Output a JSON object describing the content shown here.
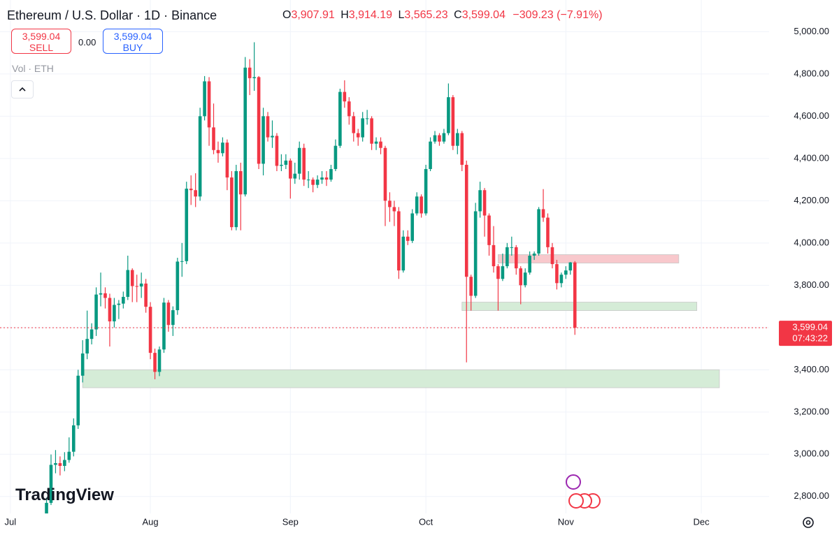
{
  "header": {
    "title": "Ethereum / U.S. Dollar · 1D · Binance",
    "ohlc": [
      {
        "key": "O",
        "value": "3,907.91"
      },
      {
        "key": "H",
        "value": "3,914.19"
      },
      {
        "key": "L",
        "value": "3,565.23"
      },
      {
        "key": "C",
        "value": "3,599.04"
      }
    ],
    "change": "−309.23 (−7.91%)",
    "sell": {
      "price": "3,599.04",
      "label": "SELL"
    },
    "spread": "0.00",
    "buy": {
      "price": "3,599.04",
      "label": "BUY"
    },
    "volume": "Vol · ETH",
    "brand": "TradingView"
  },
  "chart_data": {
    "type": "candlestick",
    "up_color": "#089981",
    "down_color": "#f23645",
    "open": [
      2615,
      2770,
      2950,
      2958,
      2945,
      2973,
      3012,
      3137,
      3372,
      3477,
      3546,
      3591,
      3756,
      3762,
      3740,
      3629,
      3707,
      3713,
      3745,
      3872,
      3796,
      3794,
      3808,
      3698,
      3480,
      3390,
      3496,
      3718,
      3612,
      3682,
      3912,
      3914,
      4257,
      4250,
      4220,
      4600,
      4765,
      4547,
      4440,
      4425,
      4475,
      4310,
      4075,
      4340,
      4230,
      4830,
      4780,
      4785,
      4375,
      4600,
      4500,
      4507,
      4365,
      4370,
      4390,
      4305,
      4328,
      4450,
      4300,
      4300,
      4275,
      4300,
      4310,
      4300,
      4350,
      4460,
      4715,
      4670,
      4600,
      4520,
      4500,
      4590,
      4590,
      4470,
      4480,
      4450,
      4200,
      4170,
      4150,
      3870,
      4030,
      4010,
      4140,
      4220,
      4140,
      4350,
      4480,
      4510,
      4480,
      4520,
      4690,
      4460,
      4520,
      4370,
      3840,
      3750,
      4150,
      4250,
      4130,
      3990,
      3890,
      3830,
      3890,
      3980,
      3980,
      3880,
      3800,
      3860,
      3940,
      3950,
      4160,
      4120,
      3980,
      3900,
      3810,
      3850,
      3870,
      3907.91
    ],
    "high": [
      2795,
      2999,
      3020,
      2990,
      3010,
      3080,
      3170,
      3400,
      3540,
      3680,
      3620,
      3790,
      3860,
      3790,
      3760,
      3740,
      3730,
      3770,
      3940,
      3880,
      3850,
      3860,
      3830,
      3720,
      3500,
      3510,
      3740,
      3730,
      3700,
      3930,
      4000,
      4290,
      4320,
      4330,
      4640,
      4790,
      4785,
      4660,
      4480,
      4500,
      4490,
      4340,
      4370,
      4380,
      4880,
      4870,
      4950,
      4790,
      4640,
      4620,
      4580,
      4520,
      4420,
      4420,
      4400,
      4380,
      4480,
      4470,
      4340,
      4310,
      4320,
      4340,
      4340,
      4370,
      4490,
      4730,
      4770,
      4690,
      4620,
      4540,
      4620,
      4630,
      4600,
      4500,
      4500,
      4460,
      4240,
      4200,
      4170,
      4060,
      4060,
      4160,
      4240,
      4230,
      4370,
      4500,
      4530,
      4520,
      4540,
      4755,
      4700,
      4540,
      4530,
      4390,
      3850,
      4190,
      4290,
      4260,
      4140,
      4080,
      3900,
      3950,
      4000,
      4030,
      3990,
      3890,
      3880,
      3960,
      3960,
      4170,
      4255,
      4140,
      4000,
      3920,
      3860,
      3890,
      3910,
      3914.19
    ],
    "low": [
      2600,
      2760,
      2910,
      2900,
      2920,
      2960,
      2990,
      3120,
      3340,
      3450,
      3520,
      3560,
      3700,
      3690,
      3510,
      3600,
      3640,
      3690,
      3730,
      3720,
      3720,
      3740,
      3670,
      3450,
      3355,
      3370,
      3480,
      3580,
      3560,
      3660,
      3840,
      3900,
      4180,
      4170,
      4200,
      4580,
      4460,
      4420,
      4380,
      4410,
      4250,
      4060,
      4060,
      4060,
      4220,
      4700,
      4720,
      4350,
      4320,
      4480,
      4450,
      4340,
      4340,
      4350,
      4210,
      4280,
      4300,
      4270,
      4260,
      4240,
      4260,
      4280,
      4270,
      4290,
      4340,
      4450,
      4640,
      4560,
      4480,
      4460,
      4480,
      4560,
      4440,
      4440,
      4420,
      4080,
      4100,
      4080,
      3830,
      3860,
      3990,
      4000,
      4130,
      4120,
      4130,
      4340,
      4470,
      4460,
      4470,
      4510,
      4440,
      4420,
      4340,
      3435,
      3680,
      3740,
      4120,
      4030,
      3940,
      3860,
      3680,
      3820,
      3880,
      3940,
      3850,
      3710,
      3790,
      3850,
      3920,
      3940,
      4100,
      3950,
      3880,
      3780,
      3790,
      3830,
      3850,
      3565.23
    ],
    "close": [
      2770,
      2950,
      2958,
      2945,
      2973,
      3012,
      3137,
      3372,
      3477,
      3546,
      3591,
      3756,
      3762,
      3740,
      3629,
      3707,
      3713,
      3745,
      3872,
      3796,
      3794,
      3808,
      3698,
      3480,
      3390,
      3496,
      3718,
      3612,
      3682,
      3912,
      3914,
      4257,
      4250,
      4220,
      4600,
      4765,
      4547,
      4440,
      4425,
      4475,
      4310,
      4075,
      4340,
      4230,
      4830,
      4780,
      4785,
      4375,
      4600,
      4500,
      4507,
      4365,
      4370,
      4390,
      4305,
      4328,
      4450,
      4300,
      4300,
      4275,
      4300,
      4310,
      4300,
      4350,
      4460,
      4715,
      4670,
      4600,
      4520,
      4500,
      4590,
      4590,
      4470,
      4480,
      4450,
      4200,
      4170,
      4150,
      3870,
      4030,
      4010,
      4140,
      4220,
      4140,
      4350,
      4480,
      4510,
      4480,
      4520,
      4690,
      4460,
      4520,
      4370,
      3840,
      3750,
      4150,
      4250,
      4130,
      3990,
      3890,
      3830,
      3890,
      3980,
      3980,
      3880,
      3800,
      3860,
      3940,
      3950,
      4160,
      4120,
      3980,
      3900,
      3810,
      3850,
      3870,
      3908,
      3599.04
    ],
    "xlim": [
      -10.3,
      160
    ],
    "xticks": [
      {
        "value": -8,
        "label": "Jul"
      },
      {
        "value": 23,
        "label": "Aug"
      },
      {
        "value": 54,
        "label": "Sep"
      },
      {
        "value": 84,
        "label": "Oct"
      },
      {
        "value": 115,
        "label": "Nov"
      },
      {
        "value": 145,
        "label": "Dec"
      }
    ],
    "ylim": [
      2720,
      5150
    ],
    "yticks": [
      {
        "value": 2800,
        "label": "2,800.00"
      },
      {
        "value": 3000,
        "label": "3,000.00"
      },
      {
        "value": 3200,
        "label": "3,200.00"
      },
      {
        "value": 3400,
        "label": "3,400.00"
      },
      {
        "value": 3600,
        "label": "3,600.00"
      },
      {
        "value": 3800,
        "label": "3,800.00"
      },
      {
        "value": 4000,
        "label": "4,000.00"
      },
      {
        "value": 4200,
        "label": "4,200.00"
      },
      {
        "value": 4400,
        "label": "4,400.00"
      },
      {
        "value": 4600,
        "label": "4,600.00"
      },
      {
        "value": 4800,
        "label": "4,800.00"
      },
      {
        "value": 5000,
        "label": "5,000.00"
      }
    ],
    "grid": true,
    "zones": [
      {
        "x": [
          100,
          140
        ],
        "y": [
          3905,
          3945
        ],
        "color": "#f8c8cc"
      },
      {
        "x": [
          92,
          144
        ],
        "y": [
          3680,
          3720
        ],
        "color": "#d5ecd7"
      },
      {
        "x": [
          8,
          149
        ],
        "y": [
          3315,
          3400
        ],
        "color": "#d5ecd7"
      }
    ],
    "last_price": {
      "value": 3599.04,
      "label": "3,599.04",
      "countdown": "07:43:22",
      "color": "#f23645"
    }
  }
}
